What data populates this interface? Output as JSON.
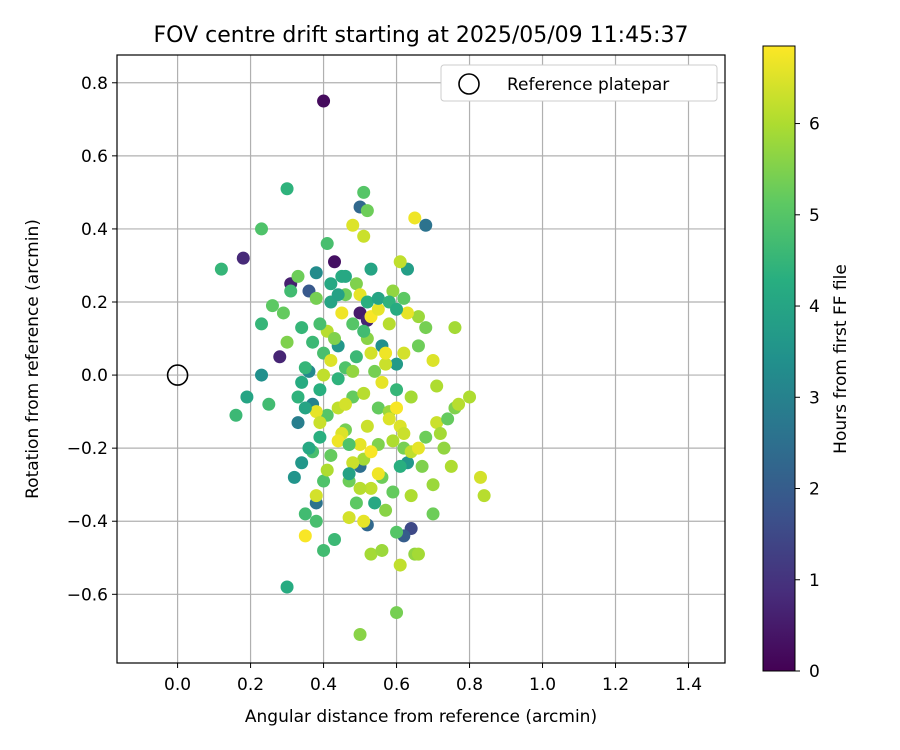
{
  "chart_data": {
    "type": "scatter",
    "title": "FOV centre drift starting at 2025/05/09 11:45:37",
    "xlabel": "Angular distance from reference (arcmin)",
    "ylabel": "Rotation from reference (arcmin)",
    "xlim": [
      -0.166,
      1.5
    ],
    "ylim": [
      -0.788,
      0.876
    ],
    "xticks": [
      0.0,
      0.2,
      0.4,
      0.6,
      0.8,
      1.0,
      1.2,
      1.4
    ],
    "xtick_labels": [
      "0.0",
      "0.2",
      "0.4",
      "0.6",
      "0.8",
      "1.0",
      "1.2",
      "1.4"
    ],
    "yticks": [
      -0.6,
      -0.4,
      -0.2,
      0.0,
      0.2,
      0.4,
      0.6,
      0.8
    ],
    "ytick_labels": [
      "−0.6",
      "−0.4",
      "−0.2",
      "0.0",
      "0.2",
      "0.4",
      "0.6",
      "0.8"
    ],
    "grid": true,
    "legend": {
      "position": "upper-right",
      "entries": [
        "Reference platepar"
      ]
    },
    "reference_point": {
      "x": 0.0,
      "y": 0.0
    },
    "colorbar": {
      "label": "Hours from first FF file",
      "range": [
        0,
        6.85
      ],
      "ticks": [
        0,
        1,
        2,
        3,
        4,
        5,
        6
      ],
      "tick_labels": [
        "0",
        "1",
        "2",
        "3",
        "4",
        "5",
        "6"
      ],
      "colormap": "viridis"
    },
    "points": [
      {
        "x": 0.4,
        "y": 0.75,
        "c": 0.2
      },
      {
        "x": 0.18,
        "y": 0.32,
        "c": 0.8
      },
      {
        "x": 0.43,
        "y": 0.31,
        "c": 0.3
      },
      {
        "x": 0.31,
        "y": 0.25,
        "c": 0.6
      },
      {
        "x": 0.28,
        "y": 0.05,
        "c": 0.7
      },
      {
        "x": 0.5,
        "y": 0.17,
        "c": 0.5
      },
      {
        "x": 0.52,
        "y": 0.15,
        "c": 0.7
      },
      {
        "x": 0.5,
        "y": 0.46,
        "c": 2.3
      },
      {
        "x": 0.68,
        "y": 0.41,
        "c": 2.6
      },
      {
        "x": 0.64,
        "y": -0.42,
        "c": 1.5
      },
      {
        "x": 0.36,
        "y": 0.23,
        "c": 1.9
      },
      {
        "x": 0.62,
        "y": -0.44,
        "c": 2.0
      },
      {
        "x": 0.5,
        "y": -0.25,
        "c": 2.5
      },
      {
        "x": 0.52,
        "y": -0.41,
        "c": 2.3
      },
      {
        "x": 0.38,
        "y": -0.35,
        "c": 2.6
      },
      {
        "x": 0.33,
        "y": -0.13,
        "c": 2.9
      },
      {
        "x": 0.37,
        "y": -0.08,
        "c": 3.0
      },
      {
        "x": 0.36,
        "y": 0.01,
        "c": 3.2
      },
      {
        "x": 0.38,
        "y": 0.28,
        "c": 3.3
      },
      {
        "x": 0.23,
        "y": 0.0,
        "c": 3.4
      },
      {
        "x": 0.32,
        "y": -0.28,
        "c": 3.5
      },
      {
        "x": 0.34,
        "y": -0.24,
        "c": 3.6
      },
      {
        "x": 0.44,
        "y": 0.08,
        "c": 3.6
      },
      {
        "x": 0.56,
        "y": 0.08,
        "c": 3.4
      },
      {
        "x": 0.6,
        "y": 0.03,
        "c": 3.7
      },
      {
        "x": 0.63,
        "y": -0.24,
        "c": 3.6
      },
      {
        "x": 0.63,
        "y": 0.29,
        "c": 3.8
      },
      {
        "x": 0.53,
        "y": 0.29,
        "c": 4.0
      },
      {
        "x": 0.42,
        "y": 0.25,
        "c": 4.1
      },
      {
        "x": 0.45,
        "y": 0.27,
        "c": 4.2
      },
      {
        "x": 0.3,
        "y": 0.51,
        "c": 4.4
      },
      {
        "x": 0.3,
        "y": -0.58,
        "c": 4.2
      },
      {
        "x": 0.19,
        "y": -0.06,
        "c": 4.0
      },
      {
        "x": 0.16,
        "y": -0.11,
        "c": 4.6
      },
      {
        "x": 0.23,
        "y": 0.14,
        "c": 4.5
      },
      {
        "x": 0.25,
        "y": -0.08,
        "c": 4.7
      },
      {
        "x": 0.12,
        "y": 0.29,
        "c": 4.5
      },
      {
        "x": 0.23,
        "y": 0.4,
        "c": 4.9
      },
      {
        "x": 0.41,
        "y": 0.36,
        "c": 4.8
      },
      {
        "x": 0.51,
        "y": 0.5,
        "c": 5.0
      },
      {
        "x": 0.52,
        "y": 0.45,
        "c": 5.3
      },
      {
        "x": 0.4,
        "y": -0.48,
        "c": 4.7
      },
      {
        "x": 0.43,
        "y": -0.45,
        "c": 4.6
      },
      {
        "x": 0.38,
        "y": -0.4,
        "c": 4.8
      },
      {
        "x": 0.4,
        "y": -0.29,
        "c": 4.9
      },
      {
        "x": 0.35,
        "y": -0.38,
        "c": 4.7
      },
      {
        "x": 0.37,
        "y": -0.21,
        "c": 4.8
      },
      {
        "x": 0.39,
        "y": -0.17,
        "c": 4.3
      },
      {
        "x": 0.33,
        "y": -0.06,
        "c": 4.4
      },
      {
        "x": 0.35,
        "y": 0.02,
        "c": 4.5
      },
      {
        "x": 0.3,
        "y": 0.09,
        "c": 5.5
      },
      {
        "x": 0.29,
        "y": 0.17,
        "c": 5.2
      },
      {
        "x": 0.26,
        "y": 0.19,
        "c": 5.1
      },
      {
        "x": 0.33,
        "y": 0.27,
        "c": 5.3
      },
      {
        "x": 0.38,
        "y": 0.21,
        "c": 5.4
      },
      {
        "x": 0.4,
        "y": 0.06,
        "c": 4.8
      },
      {
        "x": 0.41,
        "y": -0.11,
        "c": 5.0
      },
      {
        "x": 0.42,
        "y": -0.22,
        "c": 5.2
      },
      {
        "x": 0.47,
        "y": -0.29,
        "c": 5.3
      },
      {
        "x": 0.49,
        "y": -0.35,
        "c": 5.1
      },
      {
        "x": 0.46,
        "y": -0.15,
        "c": 5.4
      },
      {
        "x": 0.48,
        "y": -0.06,
        "c": 5.2
      },
      {
        "x": 0.46,
        "y": 0.02,
        "c": 4.9
      },
      {
        "x": 0.48,
        "y": 0.14,
        "c": 5.0
      },
      {
        "x": 0.46,
        "y": 0.22,
        "c": 5.3
      },
      {
        "x": 0.49,
        "y": 0.25,
        "c": 5.5
      },
      {
        "x": 0.52,
        "y": 0.1,
        "c": 5.6
      },
      {
        "x": 0.54,
        "y": 0.01,
        "c": 5.4
      },
      {
        "x": 0.55,
        "y": -0.09,
        "c": 5.2
      },
      {
        "x": 0.55,
        "y": -0.19,
        "c": 5.5
      },
      {
        "x": 0.56,
        "y": -0.28,
        "c": 5.3
      },
      {
        "x": 0.57,
        "y": -0.37,
        "c": 5.6
      },
      {
        "x": 0.59,
        "y": -0.32,
        "c": 5.2
      },
      {
        "x": 0.6,
        "y": -0.43,
        "c": 5.0
      },
      {
        "x": 0.6,
        "y": -0.65,
        "c": 5.4
      },
      {
        "x": 0.5,
        "y": -0.71,
        "c": 5.6
      },
      {
        "x": 0.53,
        "y": -0.49,
        "c": 5.9
      },
      {
        "x": 0.56,
        "y": -0.48,
        "c": 5.8
      },
      {
        "x": 0.61,
        "y": -0.52,
        "c": 6.2
      },
      {
        "x": 0.65,
        "y": -0.49,
        "c": 5.7
      },
      {
        "x": 0.66,
        "y": -0.49,
        "c": 5.9
      },
      {
        "x": 0.7,
        "y": -0.38,
        "c": 5.3
      },
      {
        "x": 0.7,
        "y": -0.3,
        "c": 5.8
      },
      {
        "x": 0.67,
        "y": -0.25,
        "c": 5.5
      },
      {
        "x": 0.68,
        "y": -0.17,
        "c": 5.3
      },
      {
        "x": 0.71,
        "y": -0.13,
        "c": 6.3
      },
      {
        "x": 0.73,
        "y": -0.2,
        "c": 5.7
      },
      {
        "x": 0.72,
        "y": -0.16,
        "c": 5.9
      },
      {
        "x": 0.75,
        "y": -0.25,
        "c": 6.0
      },
      {
        "x": 0.76,
        "y": -0.09,
        "c": 5.5
      },
      {
        "x": 0.77,
        "y": -0.08,
        "c": 6.1
      },
      {
        "x": 0.8,
        "y": -0.06,
        "c": 6.0
      },
      {
        "x": 0.83,
        "y": -0.28,
        "c": 6.4
      },
      {
        "x": 0.84,
        "y": -0.33,
        "c": 6.1
      },
      {
        "x": 0.76,
        "y": 0.13,
        "c": 5.9
      },
      {
        "x": 0.74,
        "y": -0.12,
        "c": 5.2
      },
      {
        "x": 0.71,
        "y": -0.03,
        "c": 6.0
      },
      {
        "x": 0.7,
        "y": 0.04,
        "c": 6.5
      },
      {
        "x": 0.68,
        "y": 0.13,
        "c": 5.4
      },
      {
        "x": 0.66,
        "y": 0.08,
        "c": 5.3
      },
      {
        "x": 0.66,
        "y": 0.16,
        "c": 5.8
      },
      {
        "x": 0.63,
        "y": 0.17,
        "c": 6.6
      },
      {
        "x": 0.62,
        "y": 0.21,
        "c": 5.1
      },
      {
        "x": 0.61,
        "y": 0.31,
        "c": 6.2
      },
      {
        "x": 0.65,
        "y": 0.43,
        "c": 6.7
      },
      {
        "x": 0.59,
        "y": 0.23,
        "c": 5.7
      },
      {
        "x": 0.58,
        "y": 0.14,
        "c": 6.1
      },
      {
        "x": 0.57,
        "y": 0.03,
        "c": 6.3
      },
      {
        "x": 0.62,
        "y": 0.06,
        "c": 6.4
      },
      {
        "x": 0.64,
        "y": -0.06,
        "c": 5.9
      },
      {
        "x": 0.61,
        "y": -0.14,
        "c": 6.5
      },
      {
        "x": 0.59,
        "y": -0.18,
        "c": 6.0
      },
      {
        "x": 0.62,
        "y": -0.2,
        "c": 5.4
      },
      {
        "x": 0.64,
        "y": -0.21,
        "c": 6.2
      },
      {
        "x": 0.58,
        "y": -0.1,
        "c": 5.8
      },
      {
        "x": 0.56,
        "y": -0.02,
        "c": 6.6
      },
      {
        "x": 0.53,
        "y": 0.06,
        "c": 6.4
      },
      {
        "x": 0.51,
        "y": -0.05,
        "c": 6.1
      },
      {
        "x": 0.52,
        "y": -0.14,
        "c": 6.3
      },
      {
        "x": 0.51,
        "y": -0.23,
        "c": 5.9
      },
      {
        "x": 0.53,
        "y": -0.31,
        "c": 6.2
      },
      {
        "x": 0.51,
        "y": -0.4,
        "c": 6.6
      },
      {
        "x": 0.47,
        "y": -0.39,
        "c": 6.4
      },
      {
        "x": 0.5,
        "y": -0.31,
        "c": 6.1
      },
      {
        "x": 0.48,
        "y": -0.24,
        "c": 6.3
      },
      {
        "x": 0.45,
        "y": -0.16,
        "c": 6.5
      },
      {
        "x": 0.44,
        "y": -0.09,
        "c": 6.2
      },
      {
        "x": 0.44,
        "y": -0.18,
        "c": 6.7
      },
      {
        "x": 0.41,
        "y": -0.26,
        "c": 6.0
      },
      {
        "x": 0.38,
        "y": -0.33,
        "c": 6.4
      },
      {
        "x": 0.35,
        "y": -0.44,
        "c": 6.8
      },
      {
        "x": 0.38,
        "y": -0.1,
        "c": 6.6
      },
      {
        "x": 0.39,
        "y": -0.13,
        "c": 6.3
      },
      {
        "x": 0.4,
        "y": 0.0,
        "c": 6.2
      },
      {
        "x": 0.42,
        "y": 0.04,
        "c": 6.5
      },
      {
        "x": 0.41,
        "y": 0.12,
        "c": 6.1
      },
      {
        "x": 0.45,
        "y": 0.17,
        "c": 6.7
      },
      {
        "x": 0.5,
        "y": 0.22,
        "c": 6.6
      },
      {
        "x": 0.51,
        "y": 0.38,
        "c": 6.3
      },
      {
        "x": 0.48,
        "y": 0.41,
        "c": 6.5
      },
      {
        "x": 0.53,
        "y": 0.16,
        "c": 6.8
      },
      {
        "x": 0.55,
        "y": 0.18,
        "c": 6.6
      },
      {
        "x": 0.57,
        "y": 0.06,
        "c": 6.7
      },
      {
        "x": 0.58,
        "y": -0.12,
        "c": 6.5
      },
      {
        "x": 0.6,
        "y": -0.09,
        "c": 6.8
      },
      {
        "x": 0.62,
        "y": -0.16,
        "c": 6.3
      },
      {
        "x": 0.64,
        "y": -0.33,
        "c": 6.0
      },
      {
        "x": 0.66,
        "y": -0.2,
        "c": 6.6
      },
      {
        "x": 0.55,
        "y": -0.27,
        "c": 6.7
      },
      {
        "x": 0.53,
        "y": -0.21,
        "c": 6.8
      },
      {
        "x": 0.5,
        "y": -0.19,
        "c": 6.6
      },
      {
        "x": 0.46,
        "y": -0.08,
        "c": 6.4
      },
      {
        "x": 0.48,
        "y": 0.01,
        "c": 5.7
      },
      {
        "x": 0.43,
        "y": 0.1,
        "c": 5.5
      },
      {
        "x": 0.39,
        "y": 0.14,
        "c": 4.8
      },
      {
        "x": 0.37,
        "y": 0.09,
        "c": 4.6
      },
      {
        "x": 0.34,
        "y": 0.13,
        "c": 4.5
      },
      {
        "x": 0.31,
        "y": 0.23,
        "c": 4.7
      },
      {
        "x": 0.34,
        "y": -0.02,
        "c": 4.2
      },
      {
        "x": 0.35,
        "y": -0.09,
        "c": 4.0
      },
      {
        "x": 0.36,
        "y": -0.2,
        "c": 4.1
      },
      {
        "x": 0.39,
        "y": -0.04,
        "c": 4.3
      },
      {
        "x": 0.42,
        "y": 0.2,
        "c": 4.0
      },
      {
        "x": 0.44,
        "y": 0.22,
        "c": 3.9
      },
      {
        "x": 0.46,
        "y": 0.27,
        "c": 4.1
      },
      {
        "x": 0.52,
        "y": 0.2,
        "c": 4.3
      },
      {
        "x": 0.55,
        "y": 0.21,
        "c": 4.0
      },
      {
        "x": 0.58,
        "y": 0.2,
        "c": 4.4
      },
      {
        "x": 0.6,
        "y": 0.18,
        "c": 4.2
      },
      {
        "x": 0.6,
        "y": -0.04,
        "c": 4.5
      },
      {
        "x": 0.61,
        "y": -0.25,
        "c": 4.3
      },
      {
        "x": 0.54,
        "y": -0.35,
        "c": 4.1
      },
      {
        "x": 0.47,
        "y": -0.27,
        "c": 3.9
      },
      {
        "x": 0.44,
        "y": -0.01,
        "c": 4.4
      },
      {
        "x": 0.49,
        "y": 0.05,
        "c": 4.6
      },
      {
        "x": 0.51,
        "y": 0.12,
        "c": 4.7
      },
      {
        "x": 0.47,
        "y": -0.19,
        "c": 4.9
      }
    ]
  }
}
